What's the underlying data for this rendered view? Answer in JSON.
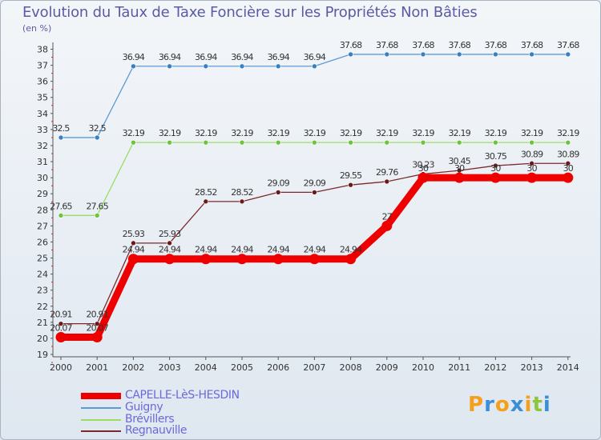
{
  "title": "Evolution du Taux de Taxe Foncière sur les Propriétés Non Bâties",
  "unit_label": "(en %)",
  "logo": {
    "text": "Proxiti",
    "letters": [
      {
        "ch": "P",
        "color": "#f5a01a"
      },
      {
        "ch": "r",
        "color": "#3b8fd6"
      },
      {
        "ch": "o",
        "color": "#f5a01a"
      },
      {
        "ch": "x",
        "color": "#3b8fd6"
      },
      {
        "ch": "i",
        "color": "#f5a01a"
      },
      {
        "ch": "t",
        "color": "#8cc63f"
      },
      {
        "ch": "i",
        "color": "#3b8fd6"
      }
    ]
  },
  "chart_data": {
    "type": "line",
    "title": "Evolution du Taux de Taxe Foncière sur les Propriétés Non Bâties",
    "ylabel": "(en %)",
    "xlabel": "",
    "ylim": [
      19,
      38
    ],
    "grid": false,
    "legend_position": "bottom-left",
    "categories": [
      "2000",
      "2001",
      "2002",
      "2003",
      "2004",
      "2005",
      "2006",
      "2007",
      "2008",
      "2009",
      "2010",
      "2011",
      "2012",
      "2013",
      "2014"
    ],
    "yticks": [
      "19",
      "20",
      "21",
      "22",
      "23",
      "24",
      "25",
      "26",
      "27",
      "28",
      "29",
      "30",
      "31",
      "32",
      "33",
      "34",
      "35",
      "36",
      "37",
      "38"
    ],
    "series": [
      {
        "name": "Guigny",
        "color": "#5b9bd5",
        "marker": "#3a7fbf",
        "values": [
          32.5,
          32.5,
          36.94,
          36.94,
          36.94,
          36.94,
          36.94,
          36.94,
          37.68,
          37.68,
          37.68,
          37.68,
          37.68,
          37.68,
          37.68
        ],
        "labels": [
          "32.5",
          "32.5",
          "36.94",
          "36.94",
          "36.94",
          "36.94",
          "36.94",
          "36.94",
          "37.68",
          "37.68",
          "37.68",
          "37.68",
          "37.68",
          "37.68",
          "37.68"
        ]
      },
      {
        "name": "Brévillers",
        "color": "#99dd66",
        "marker": "#6fc23d",
        "values": [
          27.65,
          27.65,
          32.19,
          32.19,
          32.19,
          32.19,
          32.19,
          32.19,
          32.19,
          32.19,
          32.19,
          32.19,
          32.19,
          32.19,
          32.19
        ],
        "labels": [
          "27.65",
          "27.65",
          "32.19",
          "32.19",
          "32.19",
          "32.19",
          "32.19",
          "32.19",
          "32.19",
          "32.19",
          "32.19",
          "32.19",
          "32.19",
          "32.19",
          "32.19"
        ]
      },
      {
        "name": "Regnauville",
        "color": "#7a2a2a",
        "marker": "#6a1a1a",
        "values": [
          20.91,
          20.91,
          25.93,
          25.93,
          28.52,
          28.52,
          29.09,
          29.09,
          29.55,
          29.76,
          30.23,
          30.45,
          30.75,
          30.89,
          30.89
        ],
        "labels": [
          "20.91",
          "20.91",
          "25.93",
          "25.93",
          "28.52",
          "28.52",
          "29.09",
          "29.09",
          "29.55",
          "29.76",
          "30.23",
          "30.45",
          "30.75",
          "30.89",
          "30.89"
        ]
      },
      {
        "name": "CAPELLE-LèS-HESDIN",
        "color": "#ee0000",
        "marker": "#ee0000",
        "values": [
          20.07,
          20.07,
          24.94,
          24.94,
          24.94,
          24.94,
          24.94,
          24.94,
          24.94,
          27,
          30,
          30,
          30,
          30,
          30
        ],
        "labels": [
          "20.07",
          "20.07",
          "24.94",
          "24.94",
          "24.94",
          "24.94",
          "24.94",
          "24.94",
          "24.94",
          "27",
          "30",
          "30",
          "30",
          "30",
          "30"
        ]
      }
    ],
    "legend": [
      "CAPELLE-LèS-HESDIN",
      "Guigny",
      "Brévillers",
      "Regnauville"
    ]
  }
}
